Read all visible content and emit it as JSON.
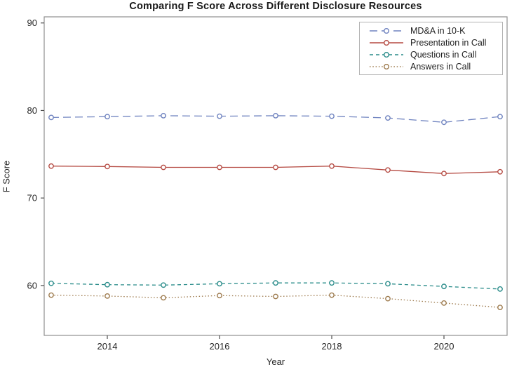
{
  "chart_data": {
    "type": "line",
    "title": "Comparing F Score Across Different Disclosure Resources",
    "xlabel": "Year",
    "ylabel": "F Score",
    "x": [
      2013,
      2014,
      2015,
      2016,
      2017,
      2018,
      2019,
      2020,
      2021
    ],
    "x_ticks": [
      "2014",
      "2016",
      "2018",
      "2020"
    ],
    "y_ticks": [
      "60",
      "70",
      "80",
      "90"
    ],
    "xlim": [
      2012.875,
      2021.125
    ],
    "ylim": [
      54.3,
      90.7
    ],
    "grid": false,
    "legend_position": "top-right-inside",
    "legend_border": true,
    "frame_color": "#8f8f8f",
    "tick_color": "#4d4d4d",
    "text_color": "#262626",
    "series": [
      {
        "name": "MD&A in 10-K",
        "color": "#6e82bf",
        "line_style": "long-dash",
        "dash": "11,6",
        "marker": "open-circle",
        "values": [
          79.2,
          79.3,
          79.4,
          79.35,
          79.4,
          79.35,
          79.15,
          78.65,
          79.3
        ]
      },
      {
        "name": "Presentation in Call",
        "color": "#b54a42",
        "line_style": "solid",
        "dash": "",
        "marker": "open-circle",
        "values": [
          73.65,
          73.6,
          73.5,
          73.5,
          73.5,
          73.65,
          73.2,
          72.8,
          73.0
        ]
      },
      {
        "name": "Questions in Call",
        "color": "#2a8c8a",
        "line_style": "dash",
        "dash": "5,4",
        "marker": "open-circle",
        "values": [
          60.25,
          60.1,
          60.05,
          60.2,
          60.3,
          60.3,
          60.2,
          59.9,
          59.6
        ]
      },
      {
        "name": "Answers in Call",
        "color": "#9d7a4d",
        "line_style": "dot",
        "dash": "1.5,2.8",
        "marker": "open-circle",
        "values": [
          58.9,
          58.8,
          58.6,
          58.85,
          58.75,
          58.9,
          58.5,
          58.0,
          57.5
        ]
      }
    ]
  }
}
